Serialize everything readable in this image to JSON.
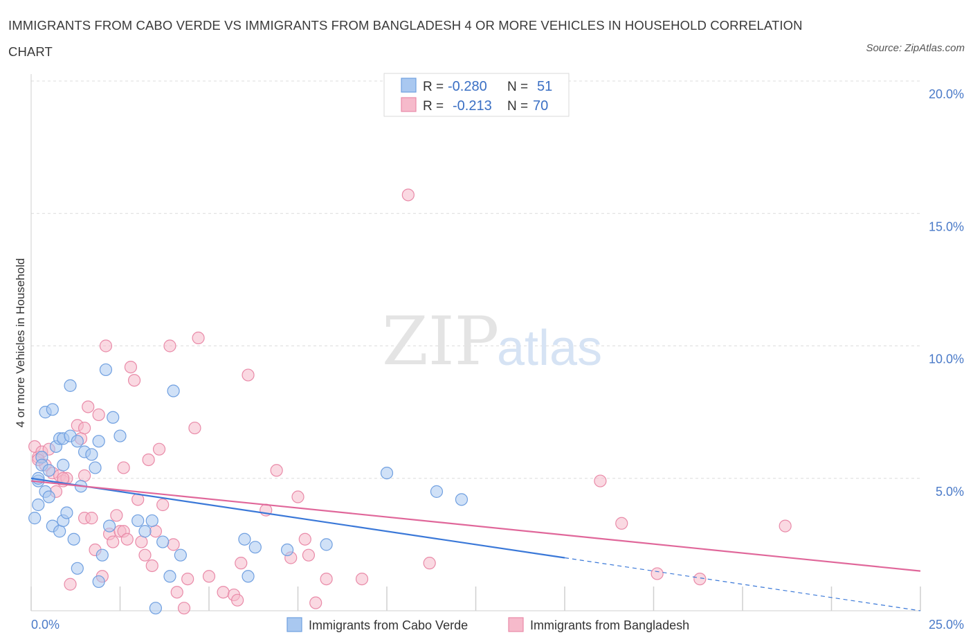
{
  "title": "IMMIGRANTS FROM CABO VERDE VS IMMIGRANTS FROM BANGLADESH 4 OR MORE VEHICLES IN HOUSEHOLD CORRELATION CHART",
  "source": "Source: ZipAtlas.com",
  "watermark": {
    "zip": "ZIP",
    "atlas": "atlas"
  },
  "legend_top": {
    "rows": [
      {
        "r_label": "R =",
        "r_value": "-0.280",
        "n_label": "N =",
        "n_value": "51",
        "color": "#a9c8f0"
      },
      {
        "r_label": "R =",
        "r_value": "-0.213",
        "n_label": "N =",
        "n_value": "70",
        "color": "#f6bacb"
      }
    ]
  },
  "chart_data": {
    "type": "scatter",
    "title": "IMMIGRANTS FROM CABO VERDE VS IMMIGRANTS FROM BANGLADESH 4 OR MORE VEHICLES IN HOUSEHOLD CORRELATION CHART",
    "xlabel": "",
    "ylabel": "4 or more Vehicles in Household",
    "xlim": [
      0,
      25
    ],
    "ylim": [
      0,
      20
    ],
    "x_tick_labels": [
      {
        "value": 0,
        "label": "0.0%"
      },
      {
        "value": 25,
        "label": "25.0%"
      }
    ],
    "y_tick_labels": [
      {
        "value": 5,
        "label": "5.0%"
      },
      {
        "value": 10,
        "label": "10.0%"
      },
      {
        "value": 15,
        "label": "15.0%"
      },
      {
        "value": 20,
        "label": "20.0%"
      }
    ],
    "series": [
      {
        "name": "Immigrants from Cabo Verde",
        "color": "#a9c8f0",
        "stroke": "#6f9fe0",
        "trend": {
          "x0": 0,
          "y0": 5.0,
          "x1": 15.0,
          "y1": 2.0,
          "dash_to_x": 25,
          "dash_to_y": 0.0,
          "color": "#3a78d8"
        },
        "points": [
          [
            0.1,
            3.5
          ],
          [
            0.2,
            4.9
          ],
          [
            0.2,
            4.0
          ],
          [
            0.3,
            5.8
          ],
          [
            0.3,
            5.5
          ],
          [
            0.4,
            7.5
          ],
          [
            0.4,
            4.5
          ],
          [
            0.5,
            5.3
          ],
          [
            0.5,
            4.3
          ],
          [
            0.6,
            7.6
          ],
          [
            0.6,
            3.2
          ],
          [
            0.7,
            6.2
          ],
          [
            0.8,
            6.5
          ],
          [
            0.8,
            3.0
          ],
          [
            0.9,
            5.5
          ],
          [
            0.9,
            3.4
          ],
          [
            0.9,
            6.5
          ],
          [
            1.0,
            3.7
          ],
          [
            1.1,
            6.6
          ],
          [
            1.1,
            8.5
          ],
          [
            1.2,
            2.7
          ],
          [
            1.3,
            6.4
          ],
          [
            1.4,
            4.7
          ],
          [
            1.5,
            6.0
          ],
          [
            1.7,
            5.9
          ],
          [
            1.8,
            5.4
          ],
          [
            1.9,
            6.4
          ],
          [
            2.0,
            2.1
          ],
          [
            2.1,
            9.1
          ],
          [
            2.3,
            7.3
          ],
          [
            2.2,
            3.2
          ],
          [
            2.5,
            6.6
          ],
          [
            3.0,
            3.4
          ],
          [
            3.2,
            3.0
          ],
          [
            3.4,
            3.4
          ],
          [
            3.5,
            0.1
          ],
          [
            3.7,
            2.6
          ],
          [
            3.9,
            1.3
          ],
          [
            4.0,
            8.3
          ],
          [
            4.2,
            2.1
          ],
          [
            1.3,
            1.6
          ],
          [
            1.9,
            1.1
          ],
          [
            6.0,
            2.7
          ],
          [
            6.1,
            1.3
          ],
          [
            6.3,
            2.4
          ],
          [
            7.2,
            2.3
          ],
          [
            8.3,
            2.5
          ],
          [
            10.0,
            5.2
          ],
          [
            11.4,
            4.5
          ],
          [
            12.1,
            4.2
          ],
          [
            0.2,
            5.0
          ]
        ]
      },
      {
        "name": "Immigrants from Bangladesh",
        "color": "#f6bacb",
        "stroke": "#e98aa8",
        "trend": {
          "x0": 0,
          "y0": 4.9,
          "x1": 25,
          "y1": 1.5,
          "color": "#e0679a"
        },
        "points": [
          [
            0.1,
            6.2
          ],
          [
            0.2,
            5.8
          ],
          [
            0.3,
            6.0
          ],
          [
            0.4,
            5.5
          ],
          [
            0.5,
            6.1
          ],
          [
            0.6,
            5.2
          ],
          [
            0.7,
            4.5
          ],
          [
            0.8,
            5.1
          ],
          [
            0.9,
            4.9
          ],
          [
            1.0,
            5.0
          ],
          [
            1.1,
            1.0
          ],
          [
            1.3,
            7.0
          ],
          [
            1.4,
            6.5
          ],
          [
            1.5,
            6.9
          ],
          [
            1.5,
            3.5
          ],
          [
            1.6,
            7.7
          ],
          [
            1.7,
            3.5
          ],
          [
            1.8,
            2.3
          ],
          [
            1.9,
            7.4
          ],
          [
            2.0,
            1.3
          ],
          [
            2.1,
            10.0
          ],
          [
            2.2,
            2.9
          ],
          [
            2.3,
            2.6
          ],
          [
            2.4,
            3.6
          ],
          [
            2.5,
            3.0
          ],
          [
            2.6,
            3.0
          ],
          [
            2.6,
            5.4
          ],
          [
            2.7,
            2.7
          ],
          [
            2.8,
            9.2
          ],
          [
            2.9,
            8.7
          ],
          [
            3.0,
            4.2
          ],
          [
            3.1,
            2.6
          ],
          [
            3.2,
            2.1
          ],
          [
            3.3,
            5.7
          ],
          [
            3.4,
            1.7
          ],
          [
            3.5,
            3.0
          ],
          [
            3.6,
            6.1
          ],
          [
            3.7,
            4.0
          ],
          [
            3.9,
            10.0
          ],
          [
            4.0,
            2.5
          ],
          [
            4.1,
            0.7
          ],
          [
            4.3,
            0.1
          ],
          [
            4.4,
            1.2
          ],
          [
            4.6,
            6.9
          ],
          [
            4.7,
            10.3
          ],
          [
            5.0,
            1.3
          ],
          [
            5.4,
            0.7
          ],
          [
            5.7,
            0.6
          ],
          [
            5.8,
            0.4
          ],
          [
            5.9,
            1.8
          ],
          [
            6.1,
            8.9
          ],
          [
            6.6,
            3.8
          ],
          [
            6.9,
            5.3
          ],
          [
            7.3,
            2.0
          ],
          [
            7.5,
            4.3
          ],
          [
            7.7,
            2.7
          ],
          [
            7.8,
            2.1
          ],
          [
            8.0,
            0.3
          ],
          [
            8.3,
            1.2
          ],
          [
            9.3,
            1.2
          ],
          [
            10.6,
            15.7
          ],
          [
            11.2,
            1.8
          ],
          [
            16.0,
            4.9
          ],
          [
            16.6,
            3.3
          ],
          [
            17.6,
            1.4
          ],
          [
            18.8,
            1.2
          ],
          [
            21.2,
            3.2
          ],
          [
            0.9,
            5.0
          ],
          [
            1.5,
            5.1
          ],
          [
            0.2,
            5.7
          ]
        ]
      }
    ],
    "legend": [
      "Immigrants from Cabo Verde",
      "Immigrants from Bangladesh"
    ]
  }
}
